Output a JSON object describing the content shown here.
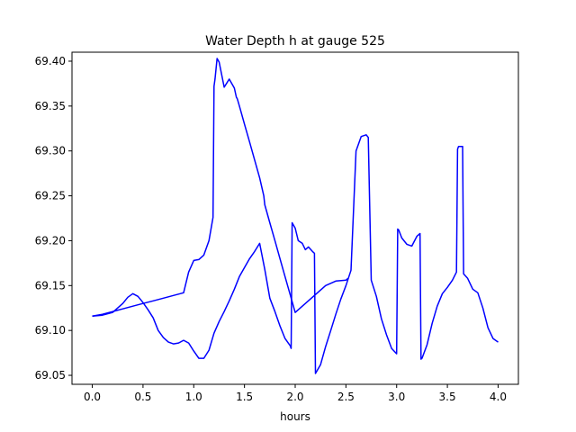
{
  "chart_data": {
    "type": "line",
    "title": "Water Depth h at gauge 525",
    "xlabel": "hours",
    "ylabel": "",
    "xlim": [
      -0.2,
      4.2
    ],
    "ylim": [
      69.04,
      69.41
    ],
    "x_ticks": [
      "0.0",
      "0.5",
      "1.0",
      "1.5",
      "2.0",
      "2.5",
      "3.0",
      "3.5",
      "4.0"
    ],
    "y_ticks": [
      "69.05",
      "69.10",
      "69.15",
      "69.20",
      "69.25",
      "69.30",
      "69.35",
      "69.40"
    ],
    "grid": false,
    "legend": "none",
    "series": [
      {
        "color": "#0000ff",
        "segments": [
          {
            "x": [
              0.0,
              0.1,
              0.2,
              0.3,
              0.35,
              0.4,
              0.45,
              0.5,
              0.55,
              0.6,
              0.65,
              0.7,
              0.75,
              0.8,
              0.85,
              0.9,
              0.95,
              1.0,
              1.05,
              1.1,
              1.15,
              1.2,
              1.25,
              1.3,
              1.35,
              1.4,
              1.45,
              1.5,
              1.55,
              1.6,
              1.65,
              1.7,
              1.75,
              1.8,
              1.85,
              1.9,
              1.95,
              1.96,
              1.97,
              2.0,
              2.03,
              2.07,
              2.1,
              2.13,
              2.17,
              2.19,
              2.2,
              2.25,
              2.3,
              2.35,
              2.4,
              2.45,
              2.5,
              2.55,
              2.6,
              2.65,
              2.7,
              2.72,
              2.75,
              2.8,
              2.85,
              2.9,
              2.95,
              3.0,
              3.01,
              3.02,
              3.05,
              3.1,
              3.15,
              3.2,
              3.23,
              3.24,
              3.25,
              3.3,
              3.35,
              3.4,
              3.45,
              3.5,
              3.55,
              3.59,
              3.6,
              3.61,
              3.65,
              3.66,
              3.7,
              3.75,
              3.8,
              3.85,
              3.9,
              3.95,
              4.0
            ],
            "y": [
              69.116,
              69.117,
              69.12,
              69.13,
              69.137,
              69.141,
              69.138,
              69.131,
              69.123,
              69.114,
              69.1,
              69.092,
              69.087,
              69.085,
              69.086,
              69.089,
              69.086,
              69.077,
              69.069,
              69.069,
              69.078,
              69.097,
              69.11,
              69.121,
              69.133,
              69.146,
              69.16,
              69.17,
              69.18,
              69.188,
              69.197,
              69.168,
              69.136,
              69.121,
              69.105,
              69.091,
              69.083,
              69.08,
              69.22,
              69.214,
              69.2,
              69.197,
              69.19,
              69.193,
              69.188,
              69.186,
              69.052,
              69.062,
              69.082,
              69.1,
              69.118,
              69.135,
              69.15,
              69.167,
              69.3,
              69.316,
              69.318,
              69.315,
              69.156,
              69.138,
              69.113,
              69.095,
              69.08,
              69.074,
              69.213,
              69.212,
              69.203,
              69.196,
              69.194,
              69.205,
              69.208,
              69.068,
              69.069,
              69.084,
              69.108,
              69.127,
              69.141,
              69.148,
              69.156,
              69.165,
              69.302,
              69.305,
              69.305,
              69.163,
              69.158,
              69.146,
              69.142,
              69.125,
              69.103,
              69.091,
              69.087
            ]
          },
          {
            "x": [
              0.0,
              0.1,
              0.2,
              0.3,
              0.4,
              0.5,
              0.6,
              0.7,
              0.8,
              0.9,
              0.95,
              1.0,
              1.05,
              1.1,
              1.15,
              1.19,
              1.2,
              1.21,
              1.23,
              1.25,
              1.3,
              1.35,
              1.4,
              1.42,
              1.43,
              1.45,
              1.5,
              1.55,
              1.6,
              1.65,
              1.69,
              1.7,
              1.75,
              1.8,
              1.85,
              1.9,
              1.95,
              2.0,
              2.1,
              2.2,
              2.3,
              2.4,
              2.5,
              2.52
            ],
            "y": [
              69.116,
              69.118,
              69.121,
              69.124,
              69.127,
              69.13,
              69.133,
              69.136,
              69.139,
              69.142,
              69.165,
              69.178,
              69.179,
              69.184,
              69.2,
              69.226,
              69.372,
              69.38,
              69.403,
              69.399,
              69.371,
              69.38,
              69.37,
              69.36,
              69.358,
              69.35,
              69.33,
              69.31,
              69.29,
              69.27,
              69.25,
              69.24,
              69.22,
              69.2,
              69.18,
              69.16,
              69.14,
              69.12,
              69.13,
              69.14,
              69.15,
              69.155,
              69.156,
              69.158
            ]
          }
        ]
      }
    ]
  }
}
